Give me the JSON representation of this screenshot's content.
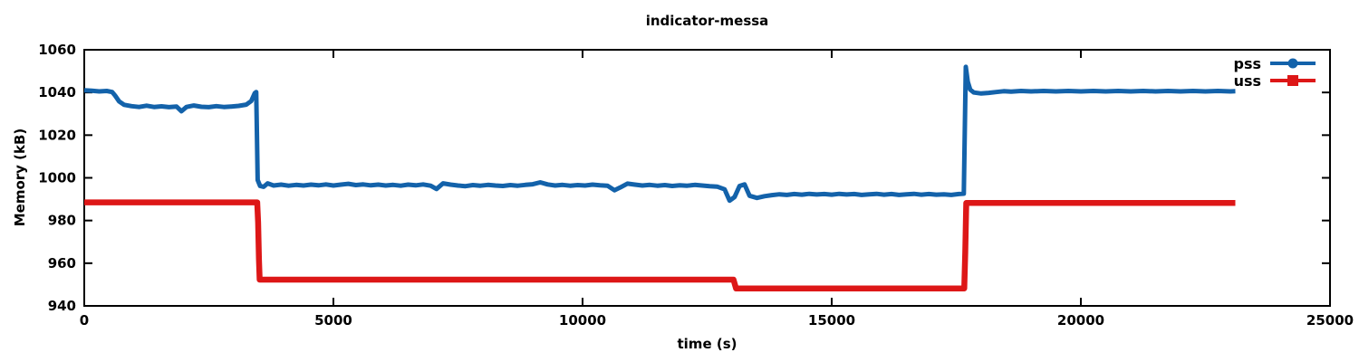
{
  "chart_data": {
    "type": "line",
    "title": "indicator-messa",
    "xlabel": "time (s)",
    "ylabel": "Memory (kB)",
    "xlim": [
      0,
      25000
    ],
    "ylim": [
      940,
      1060
    ],
    "xticks": [
      0,
      5000,
      10000,
      15000,
      20000,
      25000
    ],
    "yticks": [
      940,
      960,
      980,
      1000,
      1020,
      1040,
      1060
    ],
    "grid": false,
    "legend_position": "top-right-inside",
    "border_color": "#000000",
    "series": [
      {
        "name": "pss",
        "color": "#1362aa",
        "marker": "circle",
        "line_width": 5,
        "points": [
          [
            0,
            1041
          ],
          [
            150,
            1040.8
          ],
          [
            300,
            1040.5
          ],
          [
            450,
            1040.7
          ],
          [
            560,
            1040.2
          ],
          [
            620,
            1038.5
          ],
          [
            700,
            1035.8
          ],
          [
            800,
            1034.2
          ],
          [
            950,
            1033.6
          ],
          [
            1100,
            1033.2
          ],
          [
            1250,
            1033.8
          ],
          [
            1400,
            1033.2
          ],
          [
            1550,
            1033.5
          ],
          [
            1700,
            1033.1
          ],
          [
            1850,
            1033.4
          ],
          [
            1950,
            1031.2
          ],
          [
            2050,
            1033.2
          ],
          [
            2200,
            1033.9
          ],
          [
            2350,
            1033.3
          ],
          [
            2500,
            1033.1
          ],
          [
            2650,
            1033.6
          ],
          [
            2800,
            1033.2
          ],
          [
            2950,
            1033.4
          ],
          [
            3100,
            1033.7
          ],
          [
            3250,
            1034.3
          ],
          [
            3350,
            1036.0
          ],
          [
            3420,
            1039.6
          ],
          [
            3450,
            1040.2
          ],
          [
            3465,
            1020.0
          ],
          [
            3480,
            999.0
          ],
          [
            3530,
            996.2
          ],
          [
            3600,
            995.8
          ],
          [
            3680,
            997.4
          ],
          [
            3800,
            996.4
          ],
          [
            3950,
            996.8
          ],
          [
            4100,
            996.3
          ],
          [
            4250,
            996.7
          ],
          [
            4400,
            996.4
          ],
          [
            4550,
            996.8
          ],
          [
            4700,
            996.5
          ],
          [
            4850,
            996.9
          ],
          [
            5000,
            996.4
          ],
          [
            5150,
            996.8
          ],
          [
            5300,
            997.2
          ],
          [
            5450,
            996.6
          ],
          [
            5600,
            996.9
          ],
          [
            5750,
            996.5
          ],
          [
            5900,
            996.8
          ],
          [
            6050,
            996.4
          ],
          [
            6200,
            996.7
          ],
          [
            6350,
            996.3
          ],
          [
            6500,
            996.8
          ],
          [
            6650,
            996.5
          ],
          [
            6800,
            996.9
          ],
          [
            6950,
            996.3
          ],
          [
            7070,
            994.8
          ],
          [
            7200,
            997.4
          ],
          [
            7350,
            996.8
          ],
          [
            7500,
            996.4
          ],
          [
            7650,
            996.1
          ],
          [
            7800,
            996.6
          ],
          [
            7950,
            996.3
          ],
          [
            8100,
            996.7
          ],
          [
            8250,
            996.4
          ],
          [
            8400,
            996.2
          ],
          [
            8550,
            996.6
          ],
          [
            8700,
            996.3
          ],
          [
            8850,
            996.7
          ],
          [
            9000,
            997.0
          ],
          [
            9150,
            997.9
          ],
          [
            9300,
            996.9
          ],
          [
            9450,
            996.4
          ],
          [
            9600,
            996.7
          ],
          [
            9750,
            996.3
          ],
          [
            9900,
            996.6
          ],
          [
            10050,
            996.4
          ],
          [
            10200,
            996.8
          ],
          [
            10350,
            996.5
          ],
          [
            10500,
            996.3
          ],
          [
            10640,
            994.2
          ],
          [
            10750,
            995.4
          ],
          [
            10900,
            997.3
          ],
          [
            11050,
            996.8
          ],
          [
            11200,
            996.4
          ],
          [
            11350,
            996.7
          ],
          [
            11500,
            996.3
          ],
          [
            11650,
            996.6
          ],
          [
            11800,
            996.2
          ],
          [
            11950,
            996.5
          ],
          [
            12100,
            996.3
          ],
          [
            12250,
            996.7
          ],
          [
            12400,
            996.4
          ],
          [
            12550,
            996.1
          ],
          [
            12700,
            995.9
          ],
          [
            12850,
            994.6
          ],
          [
            12950,
            989.3
          ],
          [
            13050,
            991.0
          ],
          [
            13150,
            996.2
          ],
          [
            13250,
            996.9
          ],
          [
            13350,
            991.6
          ],
          [
            13500,
            990.6
          ],
          [
            13650,
            991.4
          ],
          [
            13800,
            991.9
          ],
          [
            13950,
            992.3
          ],
          [
            14100,
            992.0
          ],
          [
            14250,
            992.4
          ],
          [
            14400,
            992.1
          ],
          [
            14550,
            992.5
          ],
          [
            14700,
            992.2
          ],
          [
            14850,
            992.4
          ],
          [
            15000,
            992.1
          ],
          [
            15150,
            992.5
          ],
          [
            15300,
            992.2
          ],
          [
            15450,
            992.4
          ],
          [
            15600,
            992.0
          ],
          [
            15750,
            992.3
          ],
          [
            15900,
            992.5
          ],
          [
            16050,
            992.1
          ],
          [
            16200,
            992.4
          ],
          [
            16350,
            992.0
          ],
          [
            16500,
            992.3
          ],
          [
            16650,
            992.5
          ],
          [
            16800,
            992.1
          ],
          [
            16950,
            992.4
          ],
          [
            17100,
            992.1
          ],
          [
            17250,
            992.3
          ],
          [
            17400,
            992.0
          ],
          [
            17550,
            992.4
          ],
          [
            17650,
            992.6
          ],
          [
            17690,
            1052.0
          ],
          [
            17730,
            1045.0
          ],
          [
            17780,
            1041.3
          ],
          [
            17850,
            1040.0
          ],
          [
            18000,
            1039.5
          ],
          [
            18150,
            1039.8
          ],
          [
            18300,
            1040.2
          ],
          [
            18450,
            1040.6
          ],
          [
            18600,
            1040.4
          ],
          [
            18800,
            1040.7
          ],
          [
            19000,
            1040.5
          ],
          [
            19250,
            1040.7
          ],
          [
            19500,
            1040.5
          ],
          [
            19750,
            1040.7
          ],
          [
            20000,
            1040.5
          ],
          [
            20250,
            1040.7
          ],
          [
            20500,
            1040.5
          ],
          [
            20750,
            1040.7
          ],
          [
            21000,
            1040.5
          ],
          [
            21250,
            1040.7
          ],
          [
            21500,
            1040.5
          ],
          [
            21750,
            1040.7
          ],
          [
            22000,
            1040.5
          ],
          [
            22250,
            1040.7
          ],
          [
            22500,
            1040.5
          ],
          [
            22750,
            1040.7
          ],
          [
            23000,
            1040.5
          ],
          [
            23100,
            1040.6
          ]
        ]
      },
      {
        "name": "uss",
        "color": "#dd1717",
        "marker": "square",
        "line_width": 6.5,
        "points": [
          [
            0,
            988.5
          ],
          [
            3470,
            988.5
          ],
          [
            3490,
            979.0
          ],
          [
            3505,
            962.0
          ],
          [
            3520,
            952.3
          ],
          [
            13030,
            952.3
          ],
          [
            13080,
            948.2
          ],
          [
            17660,
            948.2
          ],
          [
            17680,
            965.0
          ],
          [
            17700,
            988.2
          ],
          [
            23100,
            988.2
          ]
        ]
      }
    ]
  }
}
